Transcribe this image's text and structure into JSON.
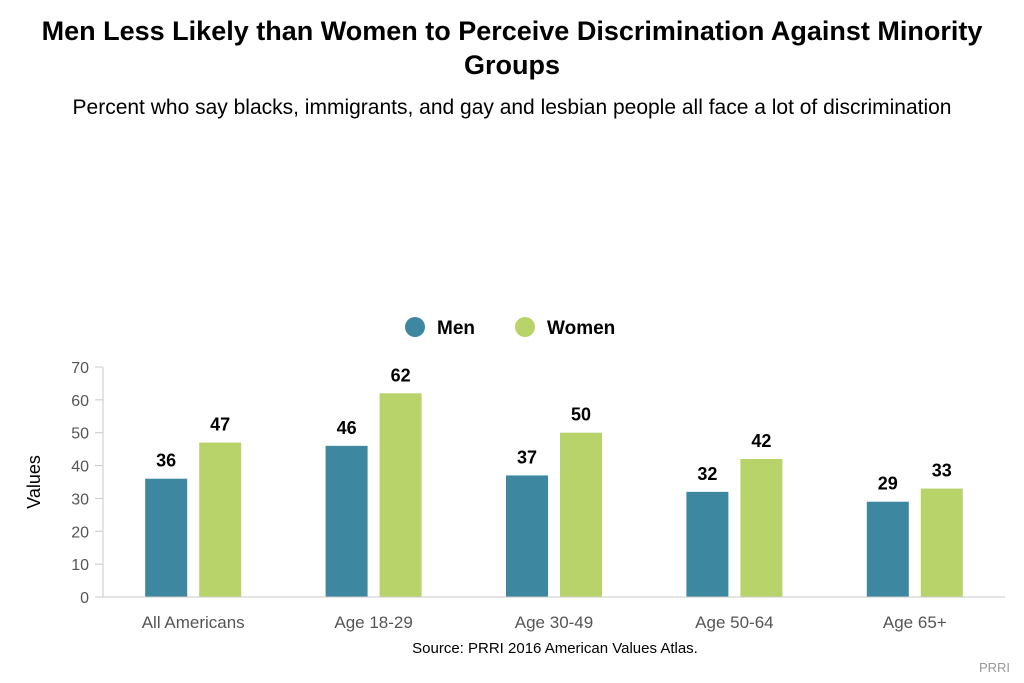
{
  "title": "Men Less Likely than Women to Perceive Discrimination Against Minority Groups",
  "subtitle": "Percent who say blacks, immigrants, and gay and lesbian people all face a lot of discrimination",
  "source": "Source: PRRI 2016 American Values Atlas.",
  "credit": "PRRI",
  "chart_data": {
    "type": "bar",
    "title": "Men Less Likely than Women to Perceive Discrimination Against Minority Groups",
    "subtitle": "Percent who say blacks, immigrants, and gay and lesbian people all face a lot of discrimination",
    "xlabel": "",
    "ylabel": "Values",
    "ylim": [
      0,
      70
    ],
    "yticks": [
      0,
      10,
      20,
      30,
      40,
      50,
      60,
      70
    ],
    "categories": [
      "All Americans",
      "Age 18-29",
      "Age 30-49",
      "Age 50-64",
      "Age 65+"
    ],
    "series": [
      {
        "name": "Men",
        "color": "#3d88a0",
        "values": [
          36,
          46,
          37,
          32,
          29
        ]
      },
      {
        "name": "Women",
        "color": "#b8d36a",
        "values": [
          47,
          62,
          50,
          42,
          33
        ]
      }
    ],
    "grid": false,
    "legend": "top-center",
    "data_labels": true
  }
}
